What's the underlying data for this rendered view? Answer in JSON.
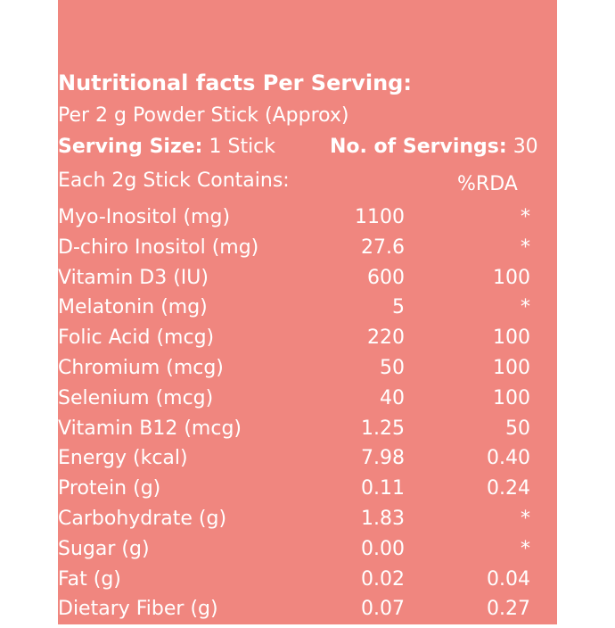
{
  "header": {
    "title": "Nutritional facts Per Serving:",
    "per": "Per 2 g Powder Stick (Approx)",
    "serving_size_label": "Serving Size:",
    "serving_size_value": "1 Stick",
    "servings_label": "No. of Servings:",
    "servings_value": "30",
    "contains": "Each 2g Stick Contains:",
    "rda_header": "%RDA"
  },
  "rows": [
    {
      "name": "Myo-Inositol (mg)",
      "amount": "1100",
      "rda": "*"
    },
    {
      "name": "D-chiro Inositol (mg)",
      "amount": "27.6",
      "rda": "*"
    },
    {
      "name": "Vitamin D3 (IU)",
      "amount": "600",
      "rda": "100"
    },
    {
      "name": "Melatonin (mg)",
      "amount": "5",
      "rda": "*"
    },
    {
      "name": "Folic Acid (mcg)",
      "amount": "220",
      "rda": "100"
    },
    {
      "name": "Chromium (mcg)",
      "amount": "50",
      "rda": "100"
    },
    {
      "name": "Selenium (mcg)",
      "amount": "40",
      "rda": "100"
    },
    {
      "name": "Vitamin B12 (mcg)",
      "amount": "1.25",
      "rda": "50"
    },
    {
      "name": "Energy (kcal)",
      "amount": "7.98",
      "rda": "0.40"
    },
    {
      "name": "Protein (g)",
      "amount": "0.11",
      "rda": "0.24"
    },
    {
      "name": "Carbohydrate (g)",
      "amount": "1.83",
      "rda": "*"
    },
    {
      "name": "Sugar (g)",
      "amount": "0.00",
      "rda": "*"
    },
    {
      "name": "Fat (g)",
      "amount": "0.02",
      "rda": "0.04"
    },
    {
      "name": "Dietary Fiber (g)",
      "amount": "0.07",
      "rda": "0.27"
    }
  ],
  "colors": {
    "panel": "#f0867f",
    "text": "#ffffff",
    "background": "#ffffff"
  }
}
